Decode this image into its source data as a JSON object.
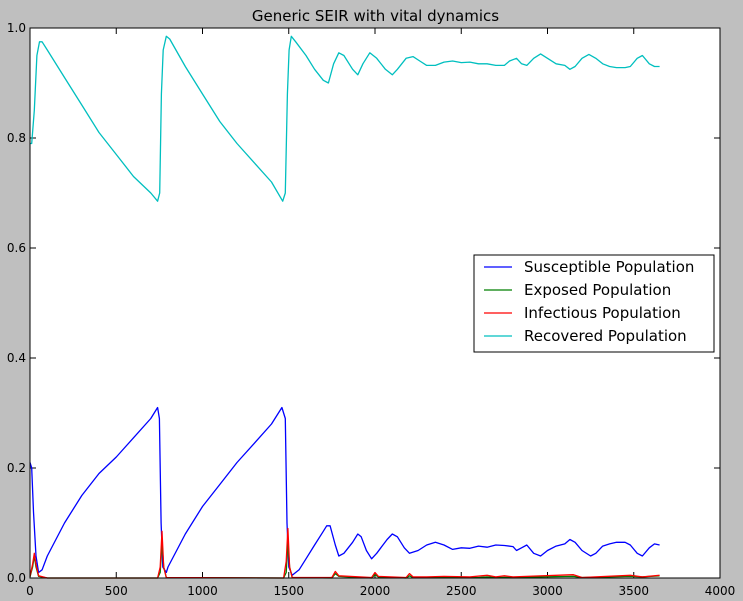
{
  "chart_data": {
    "type": "line",
    "title": "Generic SEIR with vital dynamics",
    "xlabel": "",
    "ylabel": "",
    "xlim": [
      0,
      4000
    ],
    "ylim": [
      0,
      1.0
    ],
    "x_ticks": [
      "0",
      "500",
      "1000",
      "1500",
      "2000",
      "2500",
      "3000",
      "3500",
      "4000"
    ],
    "y_ticks": [
      "0.0",
      "0.2",
      "0.4",
      "0.6",
      "0.8",
      "1.0"
    ],
    "grid": false,
    "legend_position": "center-right",
    "series": [
      {
        "name": "Susceptible Population",
        "color": "#0000ff",
        "points": [
          [
            0,
            0.21
          ],
          [
            10,
            0.2
          ],
          [
            20,
            0.12
          ],
          [
            35,
            0.04
          ],
          [
            50,
            0.01
          ],
          [
            70,
            0.015
          ],
          [
            100,
            0.04
          ],
          [
            200,
            0.1
          ],
          [
            300,
            0.15
          ],
          [
            400,
            0.19
          ],
          [
            500,
            0.22
          ],
          [
            600,
            0.255
          ],
          [
            700,
            0.29
          ],
          [
            740,
            0.31
          ],
          [
            750,
            0.29
          ],
          [
            760,
            0.1
          ],
          [
            770,
            0.02
          ],
          [
            790,
            0.01
          ],
          [
            800,
            0.02
          ],
          [
            900,
            0.08
          ],
          [
            1000,
            0.13
          ],
          [
            1100,
            0.17
          ],
          [
            1200,
            0.21
          ],
          [
            1300,
            0.245
          ],
          [
            1400,
            0.28
          ],
          [
            1460,
            0.31
          ],
          [
            1480,
            0.29
          ],
          [
            1490,
            0.1
          ],
          [
            1500,
            0.02
          ],
          [
            1520,
            0.005
          ],
          [
            1560,
            0.015
          ],
          [
            1600,
            0.035
          ],
          [
            1650,
            0.06
          ],
          [
            1700,
            0.085
          ],
          [
            1720,
            0.095
          ],
          [
            1740,
            0.095
          ],
          [
            1770,
            0.06
          ],
          [
            1790,
            0.04
          ],
          [
            1820,
            0.045
          ],
          [
            1870,
            0.065
          ],
          [
            1900,
            0.08
          ],
          [
            1920,
            0.075
          ],
          [
            1950,
            0.05
          ],
          [
            1980,
            0.035
          ],
          [
            2010,
            0.045
          ],
          [
            2070,
            0.07
          ],
          [
            2100,
            0.08
          ],
          [
            2130,
            0.075
          ],
          [
            2170,
            0.055
          ],
          [
            2200,
            0.045
          ],
          [
            2250,
            0.05
          ],
          [
            2300,
            0.06
          ],
          [
            2350,
            0.065
          ],
          [
            2400,
            0.06
          ],
          [
            2450,
            0.052
          ],
          [
            2500,
            0.055
          ],
          [
            2550,
            0.054
          ],
          [
            2600,
            0.058
          ],
          [
            2650,
            0.056
          ],
          [
            2700,
            0.06
          ],
          [
            2750,
            0.059
          ],
          [
            2800,
            0.057
          ],
          [
            2820,
            0.05
          ],
          [
            2850,
            0.055
          ],
          [
            2880,
            0.06
          ],
          [
            2920,
            0.045
          ],
          [
            2960,
            0.04
          ],
          [
            3000,
            0.05
          ],
          [
            3050,
            0.058
          ],
          [
            3100,
            0.062
          ],
          [
            3130,
            0.07
          ],
          [
            3160,
            0.065
          ],
          [
            3200,
            0.05
          ],
          [
            3250,
            0.04
          ],
          [
            3280,
            0.045
          ],
          [
            3320,
            0.058
          ],
          [
            3360,
            0.062
          ],
          [
            3400,
            0.065
          ],
          [
            3450,
            0.065
          ],
          [
            3480,
            0.06
          ],
          [
            3520,
            0.045
          ],
          [
            3550,
            0.04
          ],
          [
            3590,
            0.055
          ],
          [
            3620,
            0.062
          ],
          [
            3650,
            0.06
          ]
        ]
      },
      {
        "name": "Exposed Population",
        "color": "#007f00",
        "points": [
          [
            0,
            0.002
          ],
          [
            15,
            0.02
          ],
          [
            25,
            0.04
          ],
          [
            35,
            0.02
          ],
          [
            50,
            0.003
          ],
          [
            100,
            0.0
          ],
          [
            740,
            0.0
          ],
          [
            755,
            0.01
          ],
          [
            765,
            0.065
          ],
          [
            775,
            0.02
          ],
          [
            790,
            0.001
          ],
          [
            1470,
            0.0
          ],
          [
            1485,
            0.01
          ],
          [
            1495,
            0.065
          ],
          [
            1505,
            0.02
          ],
          [
            1520,
            0.001
          ],
          [
            1750,
            0.0
          ],
          [
            1770,
            0.008
          ],
          [
            1790,
            0.003
          ],
          [
            1980,
            0.0
          ],
          [
            2000,
            0.006
          ],
          [
            2020,
            0.002
          ],
          [
            2180,
            0.0
          ],
          [
            2200,
            0.004
          ],
          [
            2220,
            0.001
          ],
          [
            2600,
            0.001
          ],
          [
            2650,
            0.002
          ],
          [
            2700,
            0.001
          ],
          [
            3150,
            0.003
          ],
          [
            3200,
            0.001
          ],
          [
            3480,
            0.003
          ],
          [
            3550,
            0.002
          ],
          [
            3650,
            0.004
          ]
        ]
      },
      {
        "name": "Infectious Population",
        "color": "#ff0000",
        "points": [
          [
            0,
            0.003
          ],
          [
            15,
            0.025
          ],
          [
            25,
            0.045
          ],
          [
            35,
            0.025
          ],
          [
            50,
            0.004
          ],
          [
            100,
            0.0
          ],
          [
            740,
            0.0
          ],
          [
            755,
            0.02
          ],
          [
            765,
            0.085
          ],
          [
            775,
            0.02
          ],
          [
            790,
            0.001
          ],
          [
            1470,
            0.0
          ],
          [
            1485,
            0.03
          ],
          [
            1495,
            0.09
          ],
          [
            1505,
            0.02
          ],
          [
            1520,
            0.001
          ],
          [
            1750,
            0.001
          ],
          [
            1770,
            0.012
          ],
          [
            1790,
            0.004
          ],
          [
            1980,
            0.001
          ],
          [
            2000,
            0.01
          ],
          [
            2020,
            0.003
          ],
          [
            2180,
            0.001
          ],
          [
            2200,
            0.008
          ],
          [
            2220,
            0.002
          ],
          [
            2300,
            0.002
          ],
          [
            2400,
            0.003
          ],
          [
            2550,
            0.002
          ],
          [
            2650,
            0.005
          ],
          [
            2700,
            0.002
          ],
          [
            2750,
            0.004
          ],
          [
            2800,
            0.002
          ],
          [
            3150,
            0.006
          ],
          [
            3200,
            0.001
          ],
          [
            3480,
            0.005
          ],
          [
            3550,
            0.002
          ],
          [
            3650,
            0.005
          ]
        ]
      },
      {
        "name": "Recovered Population",
        "color": "#00bfbf",
        "points": [
          [
            0,
            0.79
          ],
          [
            10,
            0.79
          ],
          [
            25,
            0.85
          ],
          [
            40,
            0.95
          ],
          [
            55,
            0.975
          ],
          [
            70,
            0.975
          ],
          [
            100,
            0.96
          ],
          [
            200,
            0.91
          ],
          [
            300,
            0.86
          ],
          [
            400,
            0.81
          ],
          [
            500,
            0.77
          ],
          [
            600,
            0.73
          ],
          [
            700,
            0.7
          ],
          [
            740,
            0.685
          ],
          [
            752,
            0.7
          ],
          [
            762,
            0.88
          ],
          [
            772,
            0.96
          ],
          [
            790,
            0.985
          ],
          [
            810,
            0.98
          ],
          [
            900,
            0.93
          ],
          [
            1000,
            0.88
          ],
          [
            1100,
            0.83
          ],
          [
            1200,
            0.79
          ],
          [
            1300,
            0.755
          ],
          [
            1400,
            0.72
          ],
          [
            1465,
            0.685
          ],
          [
            1480,
            0.7
          ],
          [
            1492,
            0.88
          ],
          [
            1502,
            0.96
          ],
          [
            1515,
            0.985
          ],
          [
            1540,
            0.975
          ],
          [
            1600,
            0.95
          ],
          [
            1650,
            0.925
          ],
          [
            1700,
            0.905
          ],
          [
            1730,
            0.9
          ],
          [
            1760,
            0.935
          ],
          [
            1790,
            0.955
          ],
          [
            1820,
            0.95
          ],
          [
            1870,
            0.925
          ],
          [
            1900,
            0.915
          ],
          [
            1930,
            0.935
          ],
          [
            1970,
            0.955
          ],
          [
            2010,
            0.945
          ],
          [
            2060,
            0.925
          ],
          [
            2100,
            0.915
          ],
          [
            2130,
            0.925
          ],
          [
            2180,
            0.945
          ],
          [
            2220,
            0.948
          ],
          [
            2260,
            0.94
          ],
          [
            2300,
            0.932
          ],
          [
            2350,
            0.932
          ],
          [
            2400,
            0.938
          ],
          [
            2450,
            0.94
          ],
          [
            2500,
            0.937
          ],
          [
            2550,
            0.938
          ],
          [
            2600,
            0.935
          ],
          [
            2650,
            0.935
          ],
          [
            2700,
            0.932
          ],
          [
            2750,
            0.932
          ],
          [
            2780,
            0.94
          ],
          [
            2820,
            0.945
          ],
          [
            2850,
            0.935
          ],
          [
            2880,
            0.932
          ],
          [
            2920,
            0.945
          ],
          [
            2960,
            0.953
          ],
          [
            3000,
            0.945
          ],
          [
            3050,
            0.935
          ],
          [
            3100,
            0.932
          ],
          [
            3130,
            0.925
          ],
          [
            3160,
            0.93
          ],
          [
            3200,
            0.945
          ],
          [
            3240,
            0.952
          ],
          [
            3280,
            0.945
          ],
          [
            3320,
            0.935
          ],
          [
            3360,
            0.93
          ],
          [
            3400,
            0.928
          ],
          [
            3450,
            0.928
          ],
          [
            3480,
            0.93
          ],
          [
            3520,
            0.945
          ],
          [
            3550,
            0.95
          ],
          [
            3590,
            0.935
          ],
          [
            3620,
            0.93
          ],
          [
            3650,
            0.93
          ]
        ]
      }
    ]
  }
}
